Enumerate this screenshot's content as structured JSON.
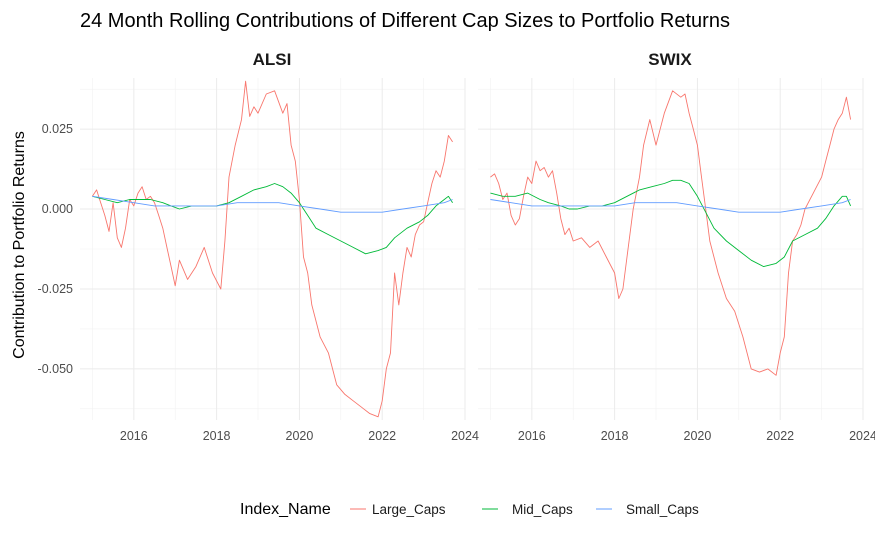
{
  "chart_data": {
    "type": "line",
    "title": "24 Month Rolling Contributions of Different Cap Sizes to Portfolio Returns",
    "ylabel": "Contribution to Portfolio Returns",
    "xlabel": "",
    "xlim": [
      2014.7,
      2024.0
    ],
    "ylim": [
      -0.066,
      0.041
    ],
    "x_ticks": [
      2016,
      2018,
      2020,
      2022,
      2024
    ],
    "y_ticks": [
      0.025,
      0.0,
      -0.025,
      -0.05
    ],
    "y_tick_labels": [
      "0.025",
      "0.000",
      "-0.025",
      "-0.050"
    ],
    "grid": true,
    "legend": {
      "title": "Index_Name",
      "position": "bottom",
      "entries": [
        "Large_Caps",
        "Mid_Caps",
        "Small_Caps"
      ]
    },
    "series_colors": {
      "Large_Caps": "#F8766D",
      "Mid_Caps": "#00BA38",
      "Small_Caps": "#619CFF"
    },
    "panels": [
      {
        "name": "ALSI",
        "series": [
          {
            "name": "Large_Caps",
            "x": [
              2015.0,
              2015.1,
              2015.2,
              2015.3,
              2015.4,
              2015.5,
              2015.6,
              2015.7,
              2015.8,
              2015.9,
              2016.0,
              2016.1,
              2016.2,
              2016.3,
              2016.4,
              2016.5,
              2016.6,
              2016.7,
              2016.8,
              2016.9,
              2017.0,
              2017.1,
              2017.3,
              2017.5,
              2017.7,
              2017.9,
              2018.1,
              2018.2,
              2018.3,
              2018.45,
              2018.6,
              2018.7,
              2018.8,
              2018.9,
              2019.0,
              2019.2,
              2019.4,
              2019.6,
              2019.7,
              2019.8,
              2019.9,
              2020.0,
              2020.1,
              2020.2,
              2020.3,
              2020.5,
              2020.7,
              2020.9,
              2021.1,
              2021.3,
              2021.5,
              2021.7,
              2021.9,
              2022.0,
              2022.1,
              2022.2,
              2022.3,
              2022.4,
              2022.5,
              2022.6,
              2022.7,
              2022.8,
              2022.9,
              2023.0,
              2023.1,
              2023.2,
              2023.3,
              2023.4,
              2023.5,
              2023.6,
              2023.7
            ],
            "values": [
              0.004,
              0.006,
              0.002,
              -0.002,
              -0.007,
              0.002,
              -0.009,
              -0.012,
              -0.006,
              0.003,
              0.001,
              0.005,
              0.007,
              0.003,
              0.004,
              0.002,
              -0.002,
              -0.006,
              -0.012,
              -0.018,
              -0.024,
              -0.016,
              -0.022,
              -0.018,
              -0.012,
              -0.02,
              -0.025,
              -0.01,
              0.01,
              0.02,
              0.028,
              0.04,
              0.029,
              0.032,
              0.03,
              0.036,
              0.037,
              0.03,
              0.033,
              0.02,
              0.015,
              0.003,
              -0.015,
              -0.02,
              -0.03,
              -0.04,
              -0.045,
              -0.055,
              -0.058,
              -0.06,
              -0.062,
              -0.064,
              -0.065,
              -0.06,
              -0.05,
              -0.045,
              -0.02,
              -0.03,
              -0.02,
              -0.012,
              -0.015,
              -0.008,
              -0.005,
              -0.004,
              0.002,
              0.008,
              0.012,
              0.01,
              0.015,
              0.023,
              0.021
            ]
          },
          {
            "name": "Mid_Caps",
            "x": [
              2015.0,
              2015.3,
              2015.6,
              2015.9,
              2016.2,
              2016.4,
              2016.7,
              2016.9,
              2017.1,
              2017.4,
              2017.7,
              2018.0,
              2018.3,
              2018.6,
              2018.9,
              2019.2,
              2019.4,
              2019.6,
              2019.8,
              2020.0,
              2020.2,
              2020.4,
              2020.7,
              2021.0,
              2021.3,
              2021.6,
              2021.9,
              2022.1,
              2022.3,
              2022.6,
              2022.9,
              2023.1,
              2023.3,
              2023.5,
              2023.6,
              2023.7
            ],
            "values": [
              0.004,
              0.003,
              0.002,
              0.003,
              0.003,
              0.003,
              0.002,
              0.001,
              0.0,
              0.001,
              0.001,
              0.001,
              0.002,
              0.004,
              0.006,
              0.007,
              0.008,
              0.007,
              0.005,
              0.002,
              -0.002,
              -0.006,
              -0.008,
              -0.01,
              -0.012,
              -0.014,
              -0.013,
              -0.012,
              -0.009,
              -0.006,
              -0.004,
              -0.002,
              0.001,
              0.003,
              0.004,
              0.002
            ]
          },
          {
            "name": "Small_Caps",
            "x": [
              2015.0,
              2015.5,
              2016.0,
              2016.5,
              2017.0,
              2017.5,
              2018.0,
              2018.5,
              2019.0,
              2019.5,
              2020.0,
              2020.5,
              2021.0,
              2021.5,
              2022.0,
              2022.5,
              2023.0,
              2023.5,
              2023.7
            ],
            "values": [
              0.004,
              0.003,
              0.002,
              0.001,
              0.001,
              0.001,
              0.001,
              0.002,
              0.002,
              0.002,
              0.001,
              0.0,
              -0.001,
              -0.001,
              -0.001,
              0.0,
              0.001,
              0.002,
              0.003
            ]
          }
        ]
      },
      {
        "name": "SWIX",
        "series": [
          {
            "name": "Large_Caps",
            "x": [
              2015.0,
              2015.1,
              2015.2,
              2015.3,
              2015.4,
              2015.5,
              2015.6,
              2015.7,
              2015.8,
              2015.9,
              2016.0,
              2016.1,
              2016.2,
              2016.3,
              2016.4,
              2016.5,
              2016.6,
              2016.7,
              2016.8,
              2016.9,
              2017.0,
              2017.2,
              2017.4,
              2017.6,
              2017.8,
              2018.0,
              2018.1,
              2018.2,
              2018.3,
              2018.45,
              2018.6,
              2018.7,
              2018.85,
              2019.0,
              2019.2,
              2019.4,
              2019.6,
              2019.7,
              2019.8,
              2019.9,
              2020.0,
              2020.1,
              2020.2,
              2020.3,
              2020.5,
              2020.7,
              2020.9,
              2021.1,
              2021.3,
              2021.5,
              2021.7,
              2021.9,
              2022.0,
              2022.1,
              2022.2,
              2022.3,
              2022.4,
              2022.5,
              2022.6,
              2022.8,
              2023.0,
              2023.1,
              2023.2,
              2023.3,
              2023.4,
              2023.5,
              2023.6,
              2023.7
            ],
            "values": [
              0.01,
              0.011,
              0.008,
              0.003,
              0.005,
              -0.002,
              -0.005,
              -0.003,
              0.004,
              0.01,
              0.008,
              0.015,
              0.012,
              0.013,
              0.01,
              0.012,
              0.005,
              -0.003,
              -0.008,
              -0.006,
              -0.01,
              -0.009,
              -0.012,
              -0.01,
              -0.015,
              -0.02,
              -0.028,
              -0.025,
              -0.015,
              0.0,
              0.01,
              0.02,
              0.028,
              0.02,
              0.03,
              0.037,
              0.035,
              0.036,
              0.03,
              0.025,
              0.02,
              0.01,
              0.0,
              -0.01,
              -0.02,
              -0.028,
              -0.032,
              -0.04,
              -0.05,
              -0.051,
              -0.05,
              -0.052,
              -0.045,
              -0.04,
              -0.02,
              -0.01,
              -0.008,
              -0.005,
              0.0,
              0.005,
              0.01,
              0.015,
              0.02,
              0.025,
              0.028,
              0.03,
              0.035,
              0.028
            ]
          },
          {
            "name": "Mid_Caps",
            "x": [
              2015.0,
              2015.3,
              2015.6,
              2015.9,
              2016.2,
              2016.4,
              2016.7,
              2016.9,
              2017.1,
              2017.4,
              2017.7,
              2018.0,
              2018.3,
              2018.6,
              2018.9,
              2019.2,
              2019.4,
              2019.6,
              2019.8,
              2020.0,
              2020.2,
              2020.4,
              2020.7,
              2021.0,
              2021.3,
              2021.6,
              2021.9,
              2022.1,
              2022.3,
              2022.6,
              2022.9,
              2023.1,
              2023.3,
              2023.5,
              2023.6,
              2023.7
            ],
            "values": [
              0.005,
              0.004,
              0.004,
              0.005,
              0.003,
              0.002,
              0.001,
              0.0,
              0.0,
              0.001,
              0.001,
              0.002,
              0.004,
              0.006,
              0.007,
              0.008,
              0.009,
              0.009,
              0.008,
              0.004,
              -0.001,
              -0.006,
              -0.01,
              -0.013,
              -0.016,
              -0.018,
              -0.017,
              -0.015,
              -0.01,
              -0.008,
              -0.006,
              -0.003,
              0.001,
              0.004,
              0.004,
              0.001
            ]
          },
          {
            "name": "Small_Caps",
            "x": [
              2015.0,
              2015.5,
              2016.0,
              2016.5,
              2017.0,
              2017.5,
              2018.0,
              2018.5,
              2019.0,
              2019.5,
              2020.0,
              2020.5,
              2021.0,
              2021.5,
              2022.0,
              2022.5,
              2023.0,
              2023.5,
              2023.7
            ],
            "values": [
              0.003,
              0.002,
              0.001,
              0.001,
              0.001,
              0.001,
              0.001,
              0.002,
              0.002,
              0.002,
              0.001,
              0.0,
              -0.001,
              -0.001,
              -0.001,
              0.0,
              0.001,
              0.002,
              0.003
            ]
          }
        ]
      }
    ]
  }
}
